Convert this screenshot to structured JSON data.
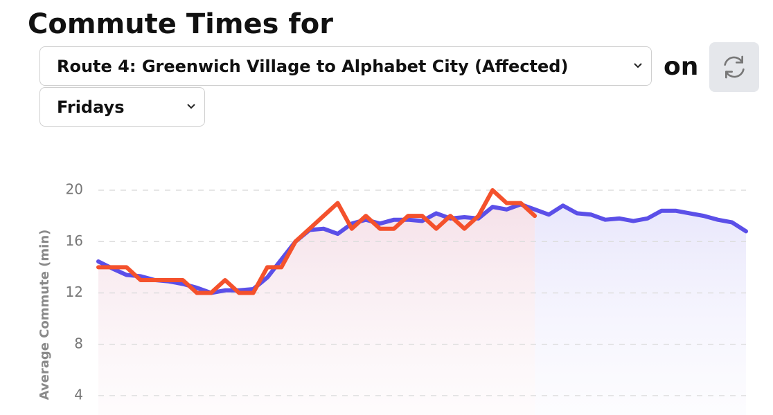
{
  "header": {
    "title": "Commute Times for",
    "route": "Route 4: Greenwich Village to Alphabet City (Affected)",
    "on": "on",
    "day": "Fridays"
  },
  "chart_data": {
    "type": "line",
    "ylabel": "Average Commute (min)",
    "ylim": [
      4,
      20
    ],
    "yticks": [
      4,
      8,
      12,
      16,
      20
    ],
    "grid": true,
    "series": [
      {
        "color": "#5b4fe8",
        "values": [
          14.45,
          13.9,
          13.4,
          13.3,
          13.0,
          12.9,
          12.7,
          12.4,
          12.0,
          12.2,
          12.2,
          12.3,
          13.2,
          14.6,
          16.0,
          16.9,
          17.0,
          16.6,
          17.4,
          17.7,
          17.4,
          17.7,
          17.7,
          17.6,
          18.2,
          17.8,
          17.9,
          17.8,
          18.7,
          18.5,
          18.9,
          18.5,
          18.1,
          18.8,
          18.2,
          18.1,
          17.7,
          17.8,
          17.6,
          17.8,
          18.4,
          18.4,
          18.2,
          18.0,
          17.7,
          17.5,
          16.8
        ]
      },
      {
        "color": "#f4512c",
        "values": [
          14,
          14,
          14,
          13,
          13,
          13,
          13,
          12,
          12,
          13,
          12,
          12,
          14,
          14,
          16,
          17,
          18,
          19,
          17,
          18,
          17,
          17,
          18,
          18,
          17,
          18,
          17,
          18,
          20,
          19,
          19,
          18,
          null,
          null,
          null,
          null,
          null,
          null,
          null,
          null,
          null,
          null,
          null,
          null,
          null,
          null,
          null
        ]
      }
    ]
  }
}
